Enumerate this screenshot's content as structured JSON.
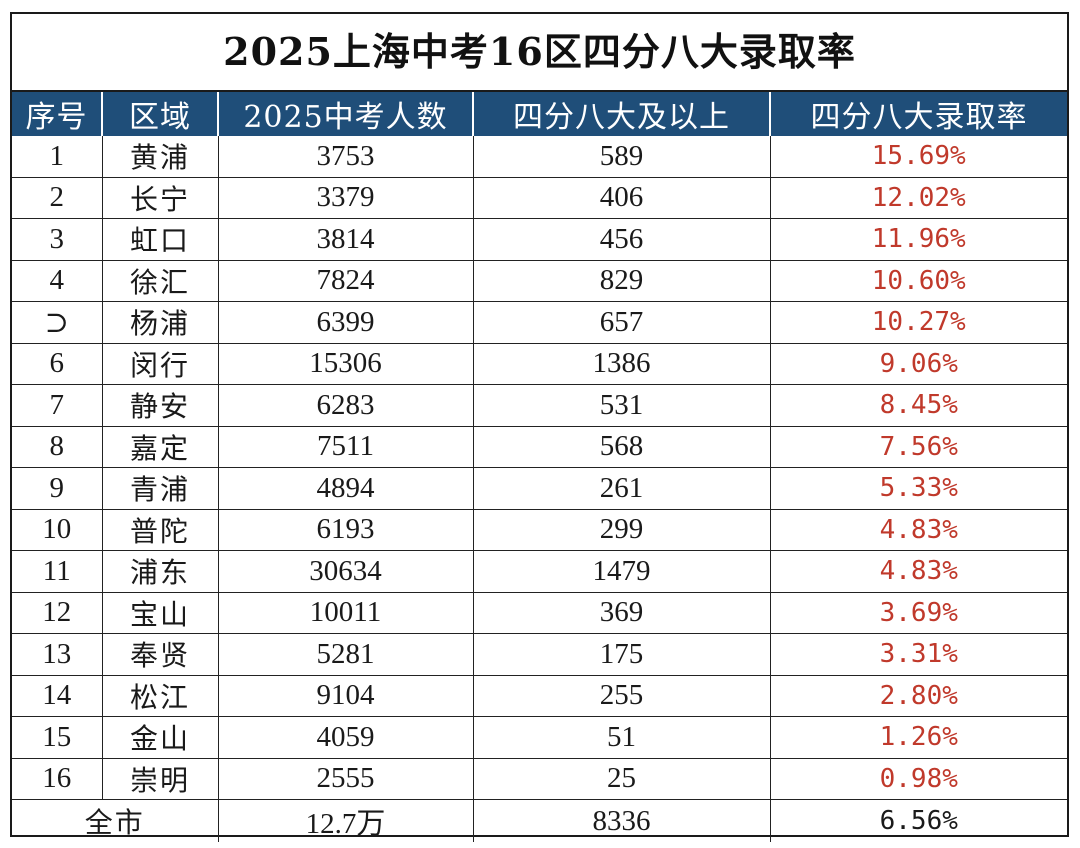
{
  "title": "2025上海中考16区四分八大录取率",
  "columns": [
    "序号",
    "区域",
    "2025中考人数",
    "四分八大及以上",
    "四分八大录取率"
  ],
  "rows": [
    {
      "no": "1",
      "district": "黄浦",
      "students": "3753",
      "admitted": "589",
      "rate": "15.69%"
    },
    {
      "no": "2",
      "district": "长宁",
      "students": "3379",
      "admitted": "406",
      "rate": "12.02%"
    },
    {
      "no": "3",
      "district": "虹口",
      "students": "3814",
      "admitted": "456",
      "rate": "11.96%"
    },
    {
      "no": "4",
      "district": "徐汇",
      "students": "7824",
      "admitted": "829",
      "rate": "10.60%"
    },
    {
      "no": "⊃",
      "district": "杨浦",
      "students": "6399",
      "admitted": "657",
      "rate": "10.27%"
    },
    {
      "no": "6",
      "district": "闵行",
      "students": "15306",
      "admitted": "1386",
      "rate": "9.06%"
    },
    {
      "no": "7",
      "district": "静安",
      "students": "6283",
      "admitted": "531",
      "rate": "8.45%"
    },
    {
      "no": "8",
      "district": "嘉定",
      "students": "7511",
      "admitted": "568",
      "rate": "7.56%"
    },
    {
      "no": "9",
      "district": "青浦",
      "students": "4894",
      "admitted": "261",
      "rate": "5.33%"
    },
    {
      "no": "10",
      "district": "普陀",
      "students": "6193",
      "admitted": "299",
      "rate": "4.83%"
    },
    {
      "no": "11",
      "district": "浦东",
      "students": "30634",
      "admitted": "1479",
      "rate": "4.83%"
    },
    {
      "no": "12",
      "district": "宝山",
      "students": "10011",
      "admitted": "369",
      "rate": "3.69%"
    },
    {
      "no": "13",
      "district": "奉贤",
      "students": "5281",
      "admitted": "175",
      "rate": "3.31%"
    },
    {
      "no": "14",
      "district": "松江",
      "students": "9104",
      "admitted": "255",
      "rate": "2.80%"
    },
    {
      "no": "15",
      "district": "金山",
      "students": "4059",
      "admitted": "51",
      "rate": "1.26%"
    },
    {
      "no": "16",
      "district": "崇明",
      "students": "2555",
      "admitted": "25",
      "rate": "0.98%"
    }
  ],
  "total": {
    "label": "全市",
    "students": "12.7万",
    "admitted": "8336",
    "rate": "6.56%"
  },
  "colors": {
    "header_bg": "#1f4e79",
    "header_text": "#ffffff",
    "rate_text": "#c0392b",
    "border": "#1a1a1a"
  }
}
